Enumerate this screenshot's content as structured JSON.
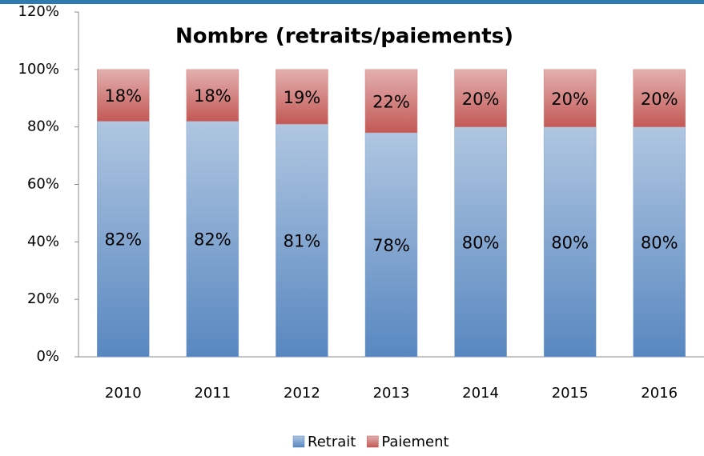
{
  "chart_data": {
    "type": "stacked-bar",
    "title": "Nombre (retraits/paiements)",
    "categories": [
      "2010",
      "2011",
      "2012",
      "2013",
      "2014",
      "2015",
      "2016"
    ],
    "series": [
      {
        "name": "Retrait",
        "color": "#4f81bd",
        "values": [
          82,
          82,
          81,
          78,
          80,
          80,
          80
        ],
        "value_labels": [
          "82%",
          "82%",
          "81%",
          "78%",
          "80%",
          "80%",
          "80%"
        ]
      },
      {
        "name": "Paiement",
        "color": "#c0504d",
        "values": [
          18,
          18,
          19,
          22,
          20,
          20,
          20
        ],
        "value_labels": [
          "18%",
          "18%",
          "19%",
          "22%",
          "20%",
          "20%",
          "20%"
        ]
      }
    ],
    "ylim": [
      0,
      120
    ],
    "yticks": [
      {
        "value": 0,
        "label": "0%"
      },
      {
        "value": 20,
        "label": "20%"
      },
      {
        "value": 40,
        "label": "40%"
      },
      {
        "value": 60,
        "label": "60%"
      },
      {
        "value": 80,
        "label": "80%"
      },
      {
        "value": 100,
        "label": "100%"
      },
      {
        "value": 120,
        "label": "120%"
      }
    ],
    "legend": "bottom"
  }
}
